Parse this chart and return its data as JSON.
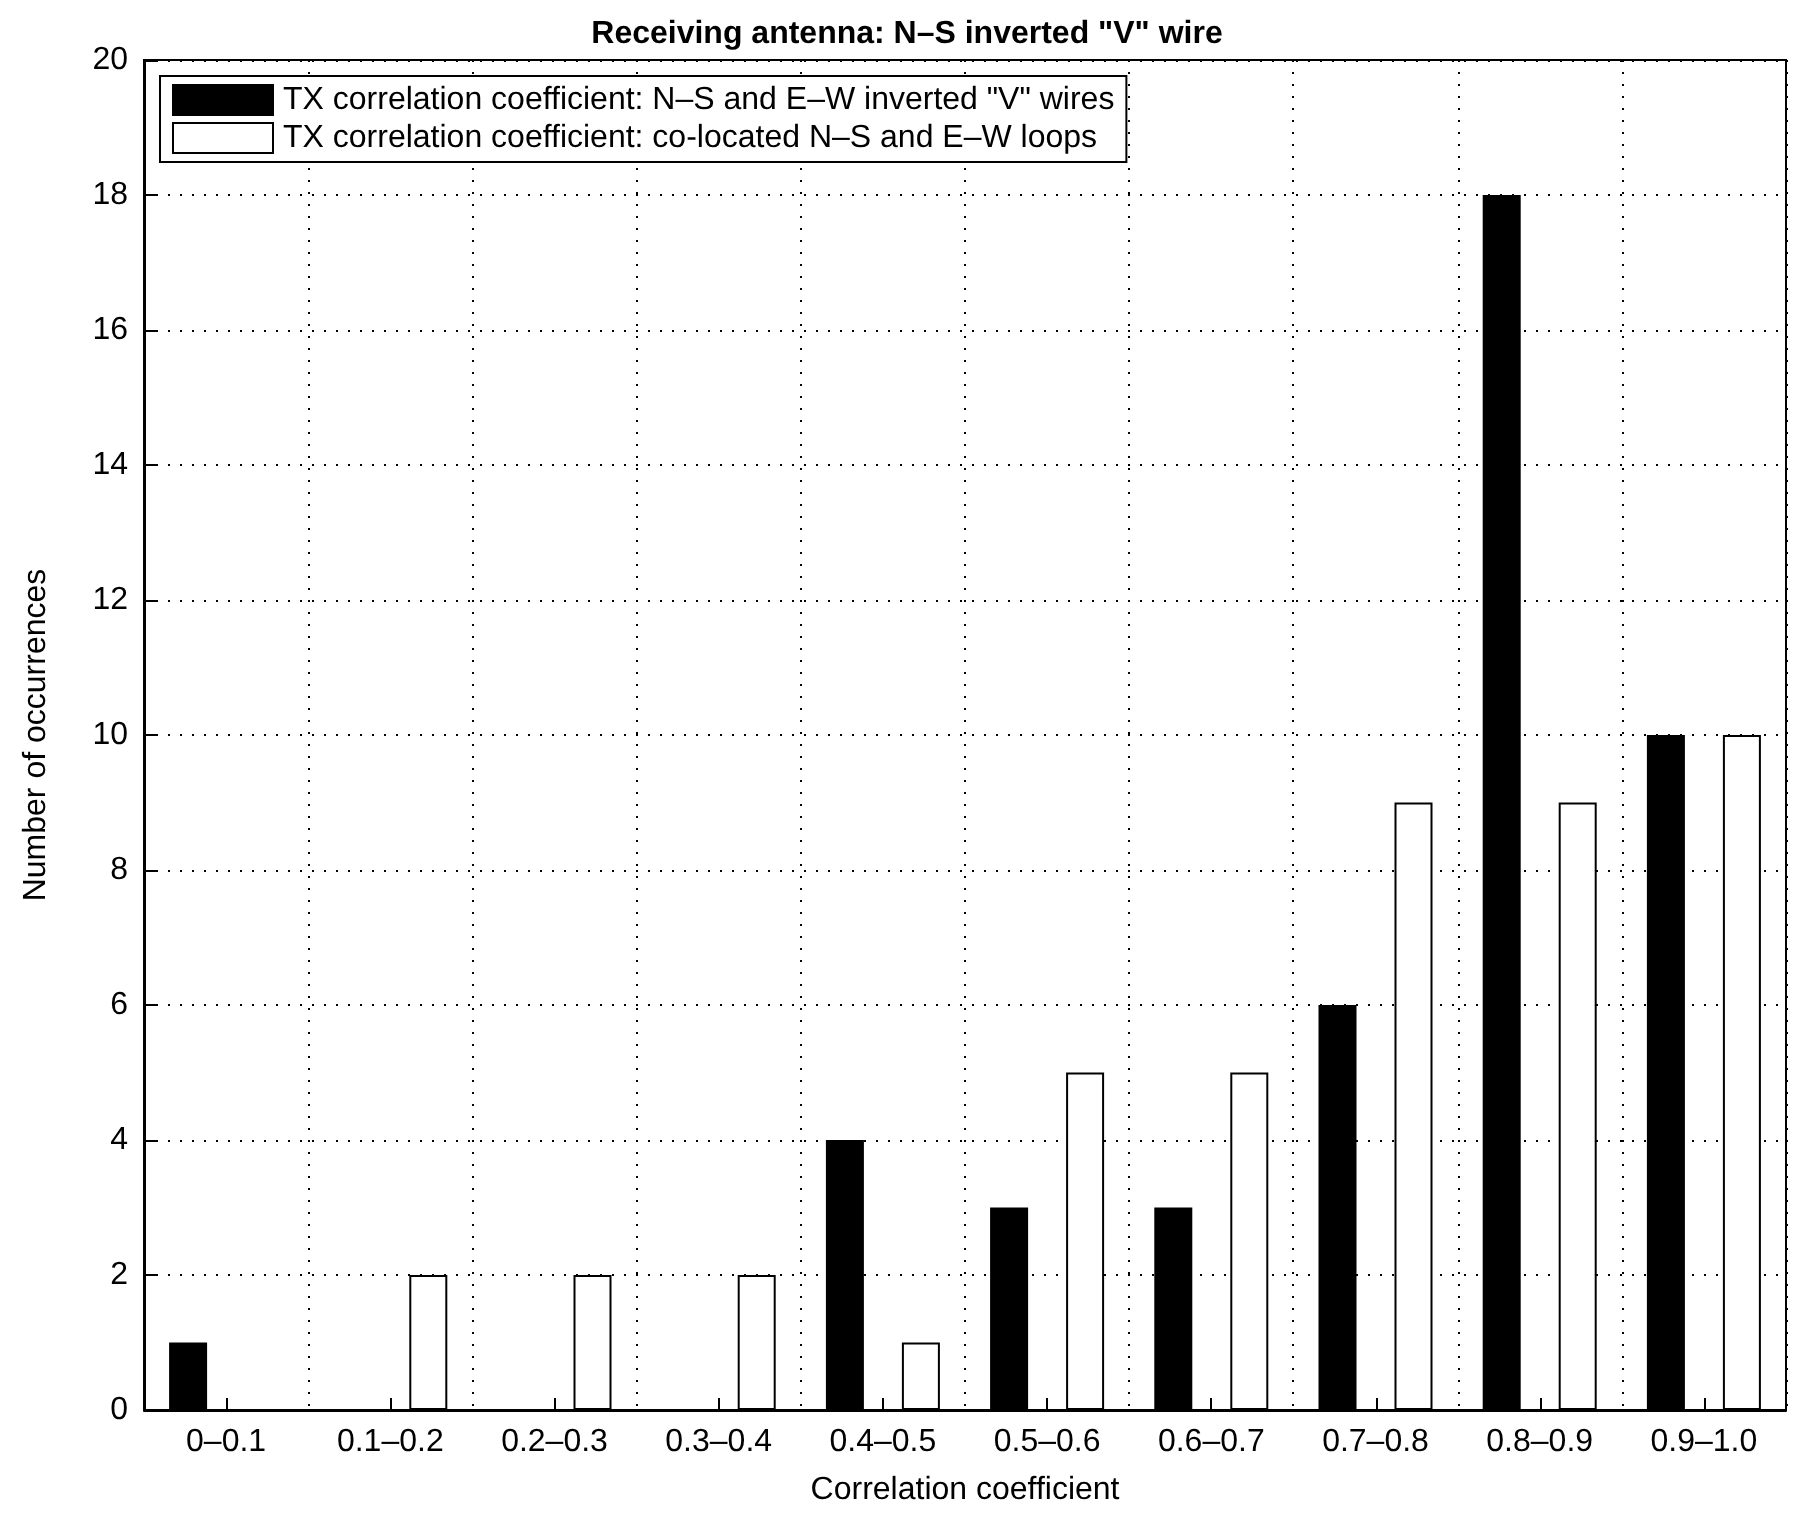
{
  "chart_data": {
    "type": "bar",
    "title": "Receiving antenna: N–S inverted \"V\" wire",
    "xlabel": "Correlation coefficient",
    "ylabel": "Number of occurrences",
    "categories": [
      "0–0.1",
      "0.1–0.2",
      "0.2–0.3",
      "0.3–0.4",
      "0.4–0.5",
      "0.5–0.6",
      "0.6–0.7",
      "0.7–0.8",
      "0.8–0.9",
      "0.9–1.0"
    ],
    "series": [
      {
        "name": "TX correlation coefficient: N–S and E–W inverted \"V\" wires",
        "color": "#000000",
        "values": [
          1,
          0,
          0,
          0,
          4,
          3,
          3,
          6,
          18,
          10
        ]
      },
      {
        "name": "TX correlation coefficient: co-located N–S and E–W loops",
        "color": "#ffffff",
        "values": [
          0,
          2,
          2,
          2,
          1,
          5,
          5,
          9,
          9,
          10
        ]
      }
    ],
    "ylim": [
      0,
      20
    ],
    "yticks": [
      0,
      2,
      4,
      6,
      8,
      10,
      12,
      14,
      16,
      18,
      20
    ],
    "grid": true,
    "legend": "top left"
  }
}
